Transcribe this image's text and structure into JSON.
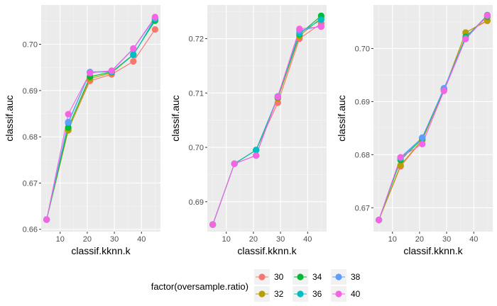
{
  "chart_data": [
    {
      "type": "line",
      "xlabel": "classif.kknn.k",
      "ylabel": "classif.auc",
      "xlim": [
        3,
        47
      ],
      "ylim": [
        0.6595,
        0.7085
      ],
      "xticks": [
        10,
        20,
        30,
        40
      ],
      "yticks": [
        0.66,
        0.67,
        0.68,
        0.69,
        0.7
      ],
      "ytick_labels": [
        "0.66",
        "0.67",
        "0.68",
        "0.69",
        "0.70"
      ],
      "grid": true,
      "x": [
        5,
        13,
        21,
        29,
        37,
        45
      ],
      "series": [
        {
          "name": "30",
          "values": [
            0.6621,
            0.6816,
            0.6921,
            0.6935,
            0.6963,
            0.7032
          ]
        },
        {
          "name": "32",
          "values": [
            0.6621,
            0.6814,
            0.6926,
            0.6938,
            0.6977,
            0.7053
          ]
        },
        {
          "name": "34",
          "values": [
            0.6621,
            0.682,
            0.693,
            0.694,
            0.6978,
            0.7051
          ]
        },
        {
          "name": "36",
          "values": [
            0.6621,
            0.683,
            0.694,
            0.694,
            0.6977,
            0.7055
          ]
        },
        {
          "name": "38",
          "values": [
            0.6621,
            0.6832,
            0.694,
            0.6942,
            0.699,
            0.7057
          ]
        },
        {
          "name": "40",
          "values": [
            0.6621,
            0.6849,
            0.6938,
            0.6943,
            0.6991,
            0.7059
          ]
        }
      ]
    },
    {
      "type": "line",
      "xlabel": "classif.kknn.k",
      "ylabel": "classif.auc",
      "xlim": [
        3,
        47
      ],
      "ylim": [
        0.6845,
        0.7262
      ],
      "xticks": [
        10,
        20,
        30,
        40
      ],
      "yticks": [
        0.69,
        0.7,
        0.71,
        0.72
      ],
      "ytick_labels": [
        "0.69",
        "0.70",
        "0.71",
        "0.72"
      ],
      "grid": true,
      "x": [
        5,
        13,
        21,
        29,
        37,
        45
      ],
      "series": [
        {
          "name": "30",
          "values": [
            0.6858,
            0.697,
            0.6995,
            0.7082,
            0.72,
            0.7228
          ]
        },
        {
          "name": "32",
          "values": [
            0.6858,
            0.697,
            0.6995,
            0.709,
            0.7205,
            0.7238
          ]
        },
        {
          "name": "34",
          "values": [
            0.6858,
            0.697,
            0.6995,
            0.7092,
            0.7208,
            0.7242
          ]
        },
        {
          "name": "36",
          "values": [
            0.6858,
            0.697,
            0.6995,
            0.7093,
            0.721,
            0.7235
          ]
        },
        {
          "name": "38",
          "values": [
            0.6858,
            0.697,
            0.6985,
            0.7094,
            0.7215,
            0.7223
          ]
        },
        {
          "name": "40",
          "values": [
            0.6858,
            0.697,
            0.6985,
            0.7093,
            0.7218,
            0.7222
          ]
        }
      ]
    },
    {
      "type": "line",
      "xlabel": "classif.kknn.k",
      "ylabel": "classif.auc",
      "xlim": [
        3,
        47
      ],
      "ylim": [
        0.6655,
        0.7082
      ],
      "xticks": [
        10,
        20,
        30,
        40
      ],
      "yticks": [
        0.67,
        0.68,
        0.69,
        0.7
      ],
      "ytick_labels": [
        "0.67",
        "0.68",
        "0.69",
        "0.70"
      ],
      "grid": true,
      "x": [
        5,
        13,
        21,
        29,
        37,
        45
      ],
      "series": [
        {
          "name": "30",
          "values": [
            0.6677,
            0.6778,
            0.6827,
            0.6922,
            0.703,
            0.7052
          ]
        },
        {
          "name": "32",
          "values": [
            0.6677,
            0.678,
            0.6828,
            0.6922,
            0.703,
            0.7053
          ]
        },
        {
          "name": "34",
          "values": [
            0.6677,
            0.679,
            0.683,
            0.6923,
            0.7022,
            0.706
          ]
        },
        {
          "name": "36",
          "values": [
            0.6677,
            0.6793,
            0.6832,
            0.6924,
            0.702,
            0.7063
          ]
        },
        {
          "name": "38",
          "values": [
            0.6677,
            0.6795,
            0.6832,
            0.6925,
            0.7018,
            0.7062
          ]
        },
        {
          "name": "40",
          "values": [
            0.6677,
            0.6795,
            0.682,
            0.692,
            0.7018,
            0.7062
          ]
        }
      ]
    }
  ],
  "legend": {
    "title": "factor(oversample.ratio)",
    "position": "bottom",
    "entries": [
      {
        "label": "30",
        "color": "#F8766D"
      },
      {
        "label": "32",
        "color": "#B79F00"
      },
      {
        "label": "34",
        "color": "#00BA38"
      },
      {
        "label": "36",
        "color": "#00BFC4"
      },
      {
        "label": "38",
        "color": "#619CFF"
      },
      {
        "label": "40",
        "color": "#F564E3"
      }
    ]
  },
  "colors": {
    "panel_background": "#EBEBEB",
    "grid_major": "#FFFFFF",
    "grid_minor": "#F5F5F5"
  }
}
